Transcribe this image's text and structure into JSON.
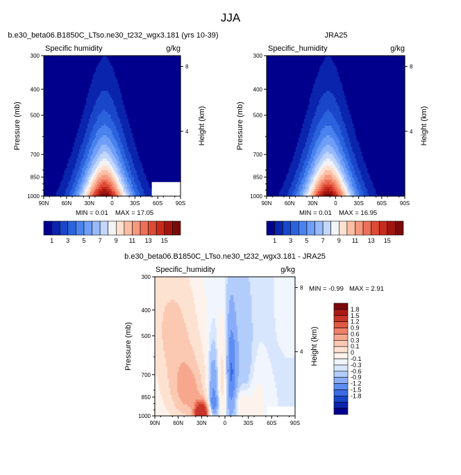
{
  "figure": {
    "title": "JJA",
    "diff_title": "b.e30_beta06.B1850C_LTso.ne30_t232_wgx3.181 - JRA25"
  },
  "colors": {
    "abs_levels": [
      "#00008c",
      "#0a24ad",
      "#1a46c9",
      "#2b63dd",
      "#4a82ee",
      "#6e9ef7",
      "#97bafd",
      "#c3d7fd",
      "#f2f3f7",
      "#fde0cf",
      "#fbbea4",
      "#f6987c",
      "#ed7058",
      "#dd4a36",
      "#c72b1e",
      "#a3140e",
      "#7a0a0a"
    ],
    "diff_levels": [
      "#00008c",
      "#0a24ad",
      "#1a46c9",
      "#3c6ae4",
      "#5f8ef3",
      "#89adf8",
      "#b2cdfb",
      "#d8e6fd",
      "#f0f5fe",
      "#fef3ec",
      "#fde2d2",
      "#fbc8b2",
      "#f7a78e",
      "#ef8068",
      "#e15a43",
      "#c9342a",
      "#a91a14",
      "#7a0a0a"
    ]
  },
  "chart_data": [
    {
      "type": "heatmap",
      "panel_title": "b.e30_beta06.B1850C_LTso.ne30_t232_wgx3.181 (yrs 10-39)",
      "variable": "Specific humidity",
      "units": "g/kg",
      "xlabel": "",
      "ylabel": "Pressure (mb)",
      "ylabel_right": "Height (km)",
      "x_ticks": [
        "90N",
        "60N",
        "30N",
        "0",
        "30S",
        "60S",
        "90S"
      ],
      "x_range": [
        90,
        -90
      ],
      "y_ticks": [
        "300",
        "400",
        "500",
        "700",
        "850",
        "1000"
      ],
      "y_range": [
        300,
        1000
      ],
      "height_ticks": [
        "8",
        "4"
      ],
      "min_text": "MIN =  0.01",
      "max_text": "MAX =  17.05",
      "min": 0.01,
      "max": 17.05,
      "peak_lat": 10,
      "peak_value": 17.05,
      "colorbar": {
        "orientation": "horizontal",
        "labels": [
          "1",
          "3",
          "5",
          "7",
          "9",
          "11",
          "13",
          "15"
        ],
        "levels": [
          1,
          2,
          3,
          4,
          5,
          6,
          7,
          8,
          9,
          10,
          11,
          12,
          13,
          14,
          15,
          16
        ]
      },
      "missing_region": "bottom-right (south polar, near surface)"
    },
    {
      "type": "heatmap",
      "panel_title": "JRA25",
      "variable": "Specific_humidity",
      "units": "g/kg",
      "xlabel": "",
      "ylabel": "Pressure (mb)",
      "ylabel_right": "Height (km)",
      "x_ticks": [
        "90N",
        "60N",
        "30N",
        "0",
        "30S",
        "60S",
        "90S"
      ],
      "x_range": [
        90,
        -90
      ],
      "y_ticks": [
        "300",
        "400",
        "500",
        "700",
        "850",
        "1000"
      ],
      "y_range": [
        300,
        1000
      ],
      "height_ticks": [
        "8",
        "4"
      ],
      "min_text": "MIN =  0.01",
      "max_text": "MAX =  16.95",
      "min": 0.01,
      "max": 16.95,
      "peak_lat": 10,
      "peak_value": 16.95,
      "colorbar": {
        "orientation": "horizontal",
        "labels": [
          "1",
          "3",
          "5",
          "7",
          "9",
          "11",
          "13",
          "15"
        ],
        "levels": [
          1,
          2,
          3,
          4,
          5,
          6,
          7,
          8,
          9,
          10,
          11,
          12,
          13,
          14,
          15,
          16
        ]
      }
    },
    {
      "type": "heatmap",
      "panel_title": "",
      "variable": "Specific_humidity",
      "units": "g/kg",
      "xlabel": "",
      "ylabel": "Pressure (mb)",
      "ylabel_right": "Height (km)",
      "x_ticks": [
        "90N",
        "60N",
        "30N",
        "0",
        "30S",
        "60S",
        "90S"
      ],
      "x_range": [
        90,
        -90
      ],
      "y_ticks": [
        "300",
        "400",
        "500",
        "700",
        "850",
        "1000"
      ],
      "y_range": [
        300,
        1000
      ],
      "height_ticks": [
        "8",
        "4"
      ],
      "min_text": "MIN = -0.99",
      "max_text": "MAX =   2.91",
      "min": -0.99,
      "max": 2.91,
      "colorbar": {
        "orientation": "vertical",
        "labels": [
          "1.8",
          "1.5",
          "1.2",
          "0.9",
          "0.6",
          "0.3",
          "0.1",
          "0",
          "-0.1",
          "-0.3",
          "-0.6",
          "-0.9",
          "-1.2",
          "-1.5",
          "-1.8"
        ],
        "levels": [
          -1.8,
          -1.5,
          -1.2,
          -0.9,
          -0.6,
          -0.3,
          -0.1,
          0,
          0.1,
          0.3,
          0.6,
          0.9,
          1.2,
          1.5,
          1.8
        ]
      },
      "missing_region": "bottom-right (south polar, near surface)"
    }
  ]
}
